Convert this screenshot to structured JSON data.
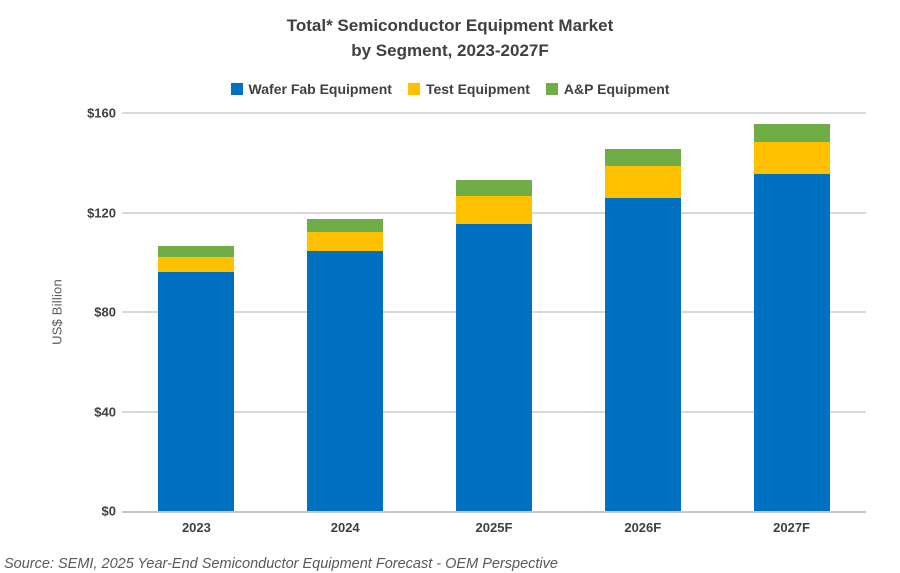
{
  "title": {
    "line1": "Total* Semiconductor Equipment Market",
    "line2": "by Segment, 2023-2027F"
  },
  "source_note": "Source: SEMI, 2025 Year-End Semiconductor Equipment Forecast - OEM Perspective",
  "colors": {
    "wafer_fab": "#0070C0",
    "test": "#FFC000",
    "ap": "#70AD47",
    "text": "#404040",
    "gridline": "#D9D9D9"
  },
  "chart_data": {
    "type": "bar",
    "stacked": true,
    "title": "Total* Semiconductor Equipment Market by Segment, 2023-2027F",
    "categories": [
      "2023",
      "2024",
      "2025F",
      "2026F",
      "2027F"
    ],
    "series": [
      {
        "name": "Wafer Fab Equipment",
        "color": "#0070C0",
        "values": [
          96,
          104.5,
          115.5,
          126,
          135.5
        ]
      },
      {
        "name": "Test Equipment",
        "color": "#FFC000",
        "values": [
          6,
          7.5,
          11,
          12.5,
          13
        ]
      },
      {
        "name": "A&P Equipment",
        "color": "#70AD47",
        "values": [
          4.5,
          5.5,
          6.5,
          7,
          7
        ]
      }
    ],
    "xlabel": "",
    "ylabel": "US$ Billion",
    "ylim": [
      0,
      160
    ],
    "yticks": [
      {
        "value": 0,
        "label": "$0"
      },
      {
        "value": 40,
        "label": "$40"
      },
      {
        "value": 80,
        "label": "$80"
      },
      {
        "value": 120,
        "label": "$120"
      },
      {
        "value": 160,
        "label": "$160"
      }
    ],
    "grid": true,
    "legend_position": "top"
  }
}
